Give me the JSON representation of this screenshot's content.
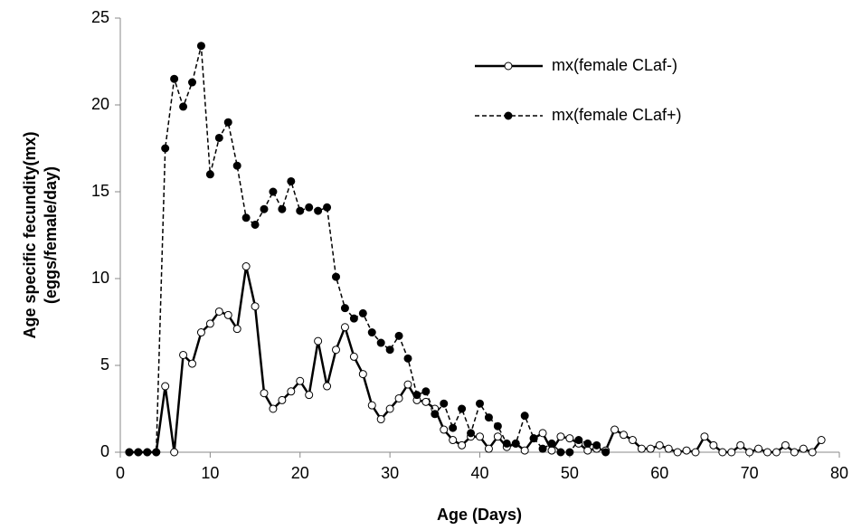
{
  "chart_data": {
    "type": "line",
    "xlabel": "Age (Days)",
    "ylabel": [
      "Age specific fecundity(mx)",
      "(eggs/female/day)"
    ],
    "xlim": [
      0,
      80
    ],
    "xticks": [
      0,
      10,
      20,
      30,
      40,
      50,
      60,
      70,
      80
    ],
    "ylim": [
      0,
      25
    ],
    "yticks": [
      0,
      5,
      10,
      15,
      20,
      25
    ],
    "grid": false,
    "legend": "upper right",
    "series": [
      {
        "name": "mx(female CLaf-)",
        "color": "#000000",
        "dashed": false,
        "marker": "open",
        "x": [
          1,
          2,
          3,
          4,
          5,
          6,
          7,
          8,
          9,
          10,
          11,
          12,
          13,
          14,
          15,
          16,
          17,
          18,
          19,
          20,
          21,
          22,
          23,
          24,
          25,
          26,
          27,
          28,
          29,
          30,
          31,
          32,
          33,
          34,
          35,
          36,
          37,
          38,
          39,
          40,
          41,
          42,
          43,
          44,
          45,
          46,
          47,
          48,
          49,
          50,
          51,
          52,
          53,
          54,
          55,
          56,
          57,
          58,
          59,
          60,
          61,
          62,
          63,
          64,
          65,
          66,
          67,
          68,
          69,
          70,
          71,
          72,
          73,
          74,
          75,
          76,
          77,
          78
        ],
        "values": [
          0,
          0,
          0,
          0,
          3.8,
          0,
          5.6,
          5.1,
          6.9,
          7.4,
          8.1,
          7.9,
          7.1,
          10.7,
          8.4,
          3.4,
          2.5,
          3,
          3.5,
          4.1,
          3.3,
          6.4,
          3.8,
          5.9,
          7.2,
          5.5,
          4.5,
          2.7,
          1.9,
          2.5,
          3.1,
          3.9,
          3,
          2.9,
          2.5,
          1.3,
          0.7,
          0.4,
          0.9,
          0.9,
          0.2,
          0.9,
          0.3,
          0.5,
          0.1,
          0.8,
          1.1,
          0.1,
          0.9,
          0.8,
          0.5,
          0.1,
          0.2,
          0.1,
          1.3,
          1,
          0.7,
          0.2,
          0.2,
          0.4,
          0.2,
          0,
          0.1,
          0,
          0.9,
          0.4,
          0,
          0,
          0.4,
          0,
          0.2,
          0,
          0,
          0.4,
          0,
          0.2,
          0,
          0.7
        ]
      },
      {
        "name": "mx(female CLaf+)",
        "color": "#000000",
        "dashed": true,
        "marker": "filled",
        "x": [
          1,
          2,
          3,
          4,
          5,
          6,
          7,
          8,
          9,
          10,
          11,
          12,
          13,
          14,
          15,
          16,
          17,
          18,
          19,
          20,
          21,
          22,
          23,
          24,
          25,
          26,
          27,
          28,
          29,
          30,
          31,
          32,
          33,
          34,
          35,
          36,
          37,
          38,
          39,
          40,
          41,
          42,
          43,
          44,
          45,
          46,
          47,
          48,
          49,
          50,
          51,
          52,
          53,
          54
        ],
        "values": [
          0,
          0,
          0,
          0,
          17.5,
          21.5,
          19.9,
          21.3,
          23.4,
          16,
          18.1,
          19,
          16.5,
          13.5,
          13.1,
          14,
          15,
          14,
          15.6,
          13.9,
          14.1,
          13.9,
          14.1,
          10.1,
          8.3,
          7.7,
          8,
          6.9,
          6.3,
          5.9,
          6.7,
          5.4,
          3.3,
          3.5,
          2.2,
          2.8,
          1.4,
          2.5,
          1.1,
          2.8,
          2,
          1.5,
          0.5,
          0.5,
          2.1,
          0.8,
          0.2,
          0.5,
          0,
          0,
          0.7,
          0.5,
          0.4,
          0
        ]
      }
    ]
  }
}
